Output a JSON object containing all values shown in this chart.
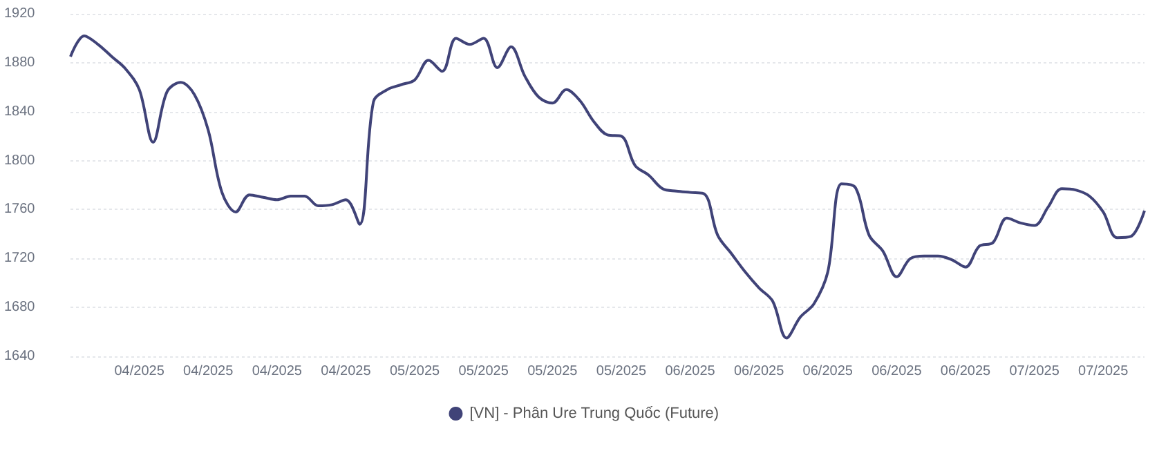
{
  "chart_data": {
    "type": "line",
    "categories": [
      null,
      null,
      null,
      null,
      null,
      "04/2025",
      null,
      null,
      null,
      null,
      "04/2025",
      null,
      null,
      null,
      null,
      "04/2025",
      null,
      null,
      null,
      null,
      "04/2025",
      null,
      null,
      null,
      null,
      "05/2025",
      null,
      null,
      null,
      null,
      "05/2025",
      null,
      null,
      null,
      null,
      "05/2025",
      null,
      null,
      null,
      null,
      "05/2025",
      null,
      null,
      null,
      null,
      "06/2025",
      null,
      null,
      null,
      null,
      "06/2025",
      null,
      null,
      null,
      null,
      "06/2025",
      null,
      null,
      null,
      null,
      "06/2025",
      null,
      null,
      null,
      null,
      "06/2025",
      null,
      null,
      null,
      null,
      "07/2025",
      null,
      null,
      null,
      null,
      "07/2025",
      null,
      null,
      null
    ],
    "series": [
      {
        "name": "[VN] - Phân Ure Trung Quốc (Future)",
        "color": "#404378",
        "values": [
          1885,
          1902,
          1895,
          1885,
          1875,
          1858,
          1815,
          1856,
          1864,
          1854,
          1825,
          1774,
          1758,
          1772,
          1770,
          1768,
          1771,
          1771,
          1763,
          1764,
          1768,
          1748,
          1848,
          1858,
          1862,
          1866,
          1882,
          1873,
          1900,
          1895,
          1900,
          1876,
          1893,
          1869,
          1852,
          1847,
          1858,
          1849,
          1832,
          1821,
          1820,
          1796,
          1788,
          1777,
          1775,
          1774,
          1773,
          1739,
          1724,
          1709,
          1696,
          1685,
          1655,
          1672,
          1683,
          1709,
          1781,
          1778,
          1739,
          1726,
          1705,
          1720,
          1722,
          1722,
          1719,
          1713,
          1730,
          1733,
          1753,
          1749,
          1747,
          1762,
          1777,
          1776,
          1771,
          1758,
          1737,
          1738,
          1759
        ]
      }
    ],
    "ylim": [
      1640,
      1920
    ],
    "yticks": [
      1640,
      1680,
      1720,
      1760,
      1800,
      1840,
      1880,
      1920
    ],
    "grid": "y",
    "legend": "bottom",
    "marker": "none"
  }
}
